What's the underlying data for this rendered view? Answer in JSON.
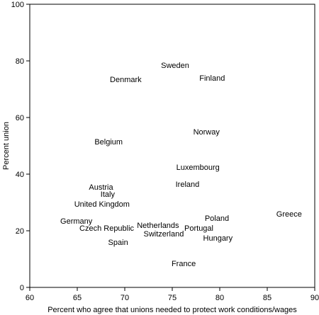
{
  "chart_data": {
    "type": "scatter",
    "title": "",
    "xlabel": "Percent who agree that unions needed to protect work conditions/wages",
    "ylabel": "Percent union",
    "xlim": [
      60,
      90
    ],
    "ylim": [
      0,
      100
    ],
    "x_ticks": [
      "60",
      "65",
      "70",
      "75",
      "80",
      "85",
      "90"
    ],
    "y_ticks": [
      "0",
      "20",
      "40",
      "60",
      "80",
      "100"
    ],
    "grid": false,
    "marker": "text-label",
    "points": [
      {
        "label": "Sweden",
        "x": 75.3,
        "y": 78.5
      },
      {
        "label": "Denmark",
        "x": 70.1,
        "y": 73.5
      },
      {
        "label": "Finland",
        "x": 79.2,
        "y": 74
      },
      {
        "label": "Norway",
        "x": 78.6,
        "y": 55
      },
      {
        "label": "Belgium",
        "x": 68.3,
        "y": 51.5
      },
      {
        "label": "Luxembourg",
        "x": 77.7,
        "y": 42.5
      },
      {
        "label": "Ireland",
        "x": 76.6,
        "y": 36.5
      },
      {
        "label": "Austria",
        "x": 67.5,
        "y": 35.5
      },
      {
        "label": "Italy",
        "x": 68.2,
        "y": 33
      },
      {
        "label": "United Kingdom",
        "x": 67.6,
        "y": 29.5
      },
      {
        "label": "Germany",
        "x": 64.9,
        "y": 23.5
      },
      {
        "label": "Czech Republic",
        "x": 68.1,
        "y": 21
      },
      {
        "label": "Spain",
        "x": 69.3,
        "y": 16
      },
      {
        "label": "Netherlands",
        "x": 73.5,
        "y": 22
      },
      {
        "label": "Switzerland",
        "x": 74.1,
        "y": 19
      },
      {
        "label": "Portugal",
        "x": 77.8,
        "y": 21
      },
      {
        "label": "Poland",
        "x": 79.7,
        "y": 24.5
      },
      {
        "label": "Hungary",
        "x": 79.8,
        "y": 17.5
      },
      {
        "label": "Greece",
        "x": 87.3,
        "y": 26
      },
      {
        "label": "France",
        "x": 76.2,
        "y": 8.5
      }
    ]
  }
}
